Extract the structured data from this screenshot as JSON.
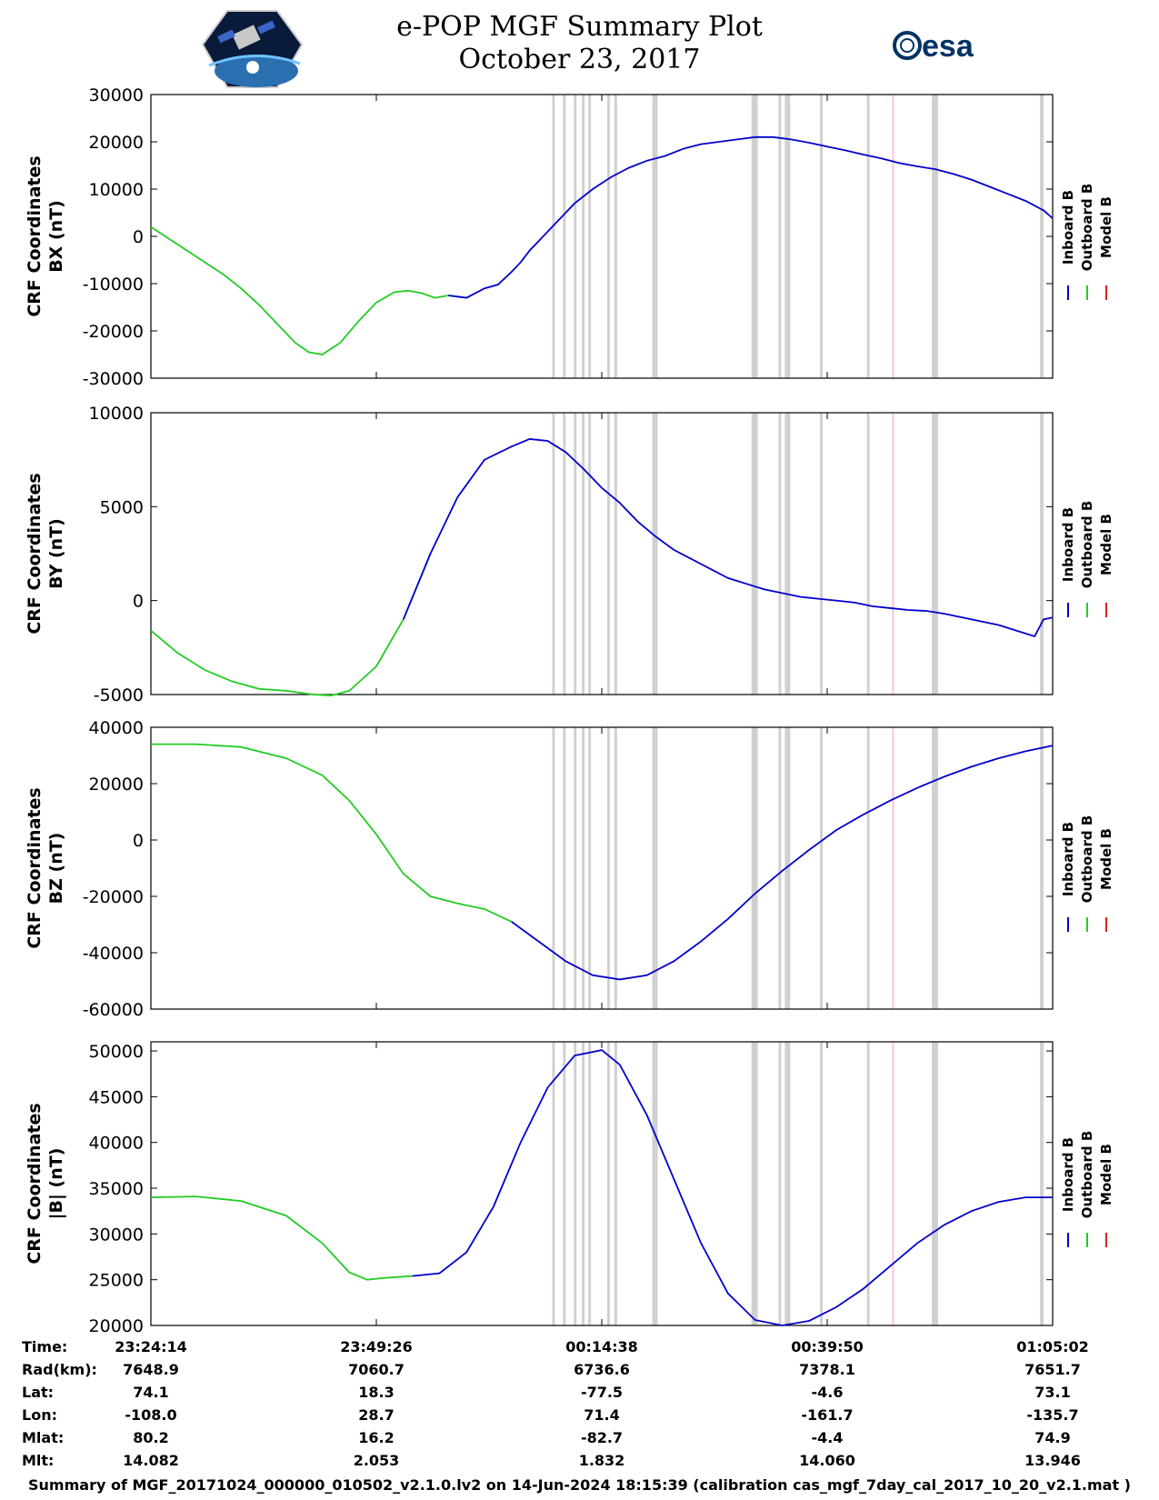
{
  "header": {
    "title": "e-POP MGF Summary Plot",
    "date": "October 23, 2017",
    "left_logo": "e-pop-cassiope-hexagon-logo",
    "right_logo": "esa",
    "right_logo_text": "esa"
  },
  "colors": {
    "inboard": "#0000cc",
    "outboard": "#22cc22",
    "model": "#dd2222",
    "band": "#d0d0d0",
    "band_pink": "#ffc0e0"
  },
  "legend": [
    "Inboard B",
    "Outboard B",
    "Model B"
  ],
  "chart_data": [
    {
      "type": "line",
      "ylabel_line1": "CRF Coordinates",
      "ylabel_line2": "BX (nT)",
      "ylim": [
        -30000,
        30000
      ],
      "yticks": [
        "30000",
        "20000",
        "10000",
        "0",
        "-10000",
        "-20000",
        "-30000"
      ],
      "x": [
        0,
        2,
        4,
        6,
        8,
        10,
        12,
        14,
        16,
        17.5,
        19,
        21,
        23,
        25,
        27,
        28.5,
        30,
        31.5,
        33,
        35,
        37,
        38.5,
        40,
        41,
        42,
        43,
        45,
        47,
        49,
        51,
        53,
        55,
        57,
        59,
        61,
        63,
        65,
        67,
        69,
        71,
        73,
        75,
        77,
        79,
        81,
        83,
        85,
        87,
        89,
        91,
        93,
        95,
        97,
        99,
        100
      ],
      "series": [
        {
          "name": "Outboard B",
          "color_key": "outboard",
          "start": 0,
          "end": 19
        },
        {
          "name": "Model B",
          "color_key": "model",
          "start": 18,
          "end": 22
        },
        {
          "name": "Inboard B",
          "color_key": "inboard",
          "start": 18,
          "end": 54
        }
      ],
      "y": [
        2000,
        -500,
        -3000,
        -5500,
        -8000,
        -11000,
        -14500,
        -18500,
        -22500,
        -24500,
        -25000,
        -22500,
        -18000,
        -14000,
        -11800,
        -11500,
        -12000,
        -13000,
        -12500,
        -13000,
        -11000,
        -10200,
        -7500,
        -5500,
        -3000,
        -1000,
        3000,
        7000,
        10000,
        12500,
        14500,
        16000,
        17000,
        18500,
        19500,
        20000,
        20500,
        21000,
        21000,
        20500,
        19800,
        19000,
        18200,
        17300,
        16500,
        15500,
        14800,
        14200,
        13200,
        12000,
        10500,
        9000,
        7500,
        5500,
        3800
      ]
    },
    {
      "type": "line",
      "ylabel_line1": "CRF Coordinates",
      "ylabel_line2": "BY (nT)",
      "ylim": [
        -5000,
        10000
      ],
      "yticks": [
        "10000",
        "5000",
        "0",
        "-5000"
      ],
      "x": [
        0,
        3,
        6,
        9,
        12,
        15,
        18,
        20,
        22,
        25,
        28,
        31,
        34,
        37,
        40,
        42,
        44,
        46,
        48,
        50,
        52,
        54,
        56,
        58,
        60,
        62,
        64,
        66,
        68,
        70,
        72,
        74,
        76,
        78,
        80,
        82,
        84,
        86,
        88,
        90,
        92,
        94,
        96,
        98,
        99,
        100
      ],
      "series": [
        {
          "name": "Outboard B",
          "color_key": "outboard",
          "start": 0,
          "end": 11
        },
        {
          "name": "Model B",
          "color_key": "model",
          "start": 15,
          "end": 17
        },
        {
          "name": "Inboard B",
          "color_key": "inboard",
          "start": 10,
          "end": 45
        }
      ],
      "y": [
        -1600,
        -2800,
        -3700,
        -4300,
        -4700,
        -4800,
        -5000,
        -5050,
        -4800,
        -3500,
        -1000,
        2500,
        5500,
        7500,
        8200,
        8600,
        8500,
        7900,
        7000,
        6000,
        5200,
        4200,
        3400,
        2700,
        2200,
        1700,
        1200,
        900,
        600,
        400,
        200,
        100,
        0,
        -100,
        -300,
        -400,
        -500,
        -550,
        -700,
        -900,
        -1100,
        -1300,
        -1600,
        -1900,
        -1000,
        -900
      ]
    },
    {
      "type": "line",
      "ylabel_line1": "CRF Coordinates",
      "ylabel_line2": "BZ (nT)",
      "ylim": [
        -60000,
        40000
      ],
      "yticks": [
        "40000",
        "20000",
        "0",
        "-20000",
        "-40000",
        "-60000"
      ],
      "x": [
        0,
        5,
        10,
        15,
        19,
        22,
        25,
        28,
        31,
        34,
        37,
        40,
        43,
        46,
        49,
        52,
        55,
        58,
        61,
        64,
        67,
        70,
        73,
        76,
        79,
        82,
        85,
        88,
        91,
        94,
        97,
        100
      ],
      "series": [
        {
          "name": "Outboard B",
          "color_key": "outboard",
          "start": 0,
          "end": 11
        },
        {
          "name": "Inboard B",
          "color_key": "inboard",
          "start": 11,
          "end": 31
        }
      ],
      "y": [
        34000,
        34000,
        33000,
        29000,
        23000,
        14000,
        2000,
        -12000,
        -20000,
        -22500,
        -24500,
        -29000,
        -36000,
        -43000,
        -48000,
        -49500,
        -48000,
        -43000,
        -36000,
        -28000,
        -19000,
        -11000,
        -3500,
        3500,
        9000,
        14000,
        18500,
        22500,
        26000,
        29000,
        31500,
        33500
      ]
    },
    {
      "type": "line",
      "ylabel_line1": "CRF Coordinates",
      "ylabel_line2": "|B| (nT)",
      "ylim": [
        20000,
        51000
      ],
      "yticks": [
        "50000",
        "45000",
        "40000",
        "35000",
        "30000",
        "25000",
        "20000"
      ],
      "x": [
        0,
        5,
        10,
        15,
        19,
        22,
        24,
        26,
        29,
        32,
        35,
        38,
        41,
        44,
        47,
        50,
        52,
        55,
        58,
        61,
        64,
        67,
        70,
        73,
        76,
        79,
        82,
        85,
        88,
        91,
        94,
        97,
        100
      ],
      "series": [
        {
          "name": "Outboard B",
          "color_key": "outboard",
          "start": 0,
          "end": 8
        },
        {
          "name": "Inboard B",
          "color_key": "inboard",
          "start": 8,
          "end": 32
        }
      ],
      "y": [
        34000,
        34100,
        33600,
        32000,
        29000,
        25800,
        25000,
        25200,
        25400,
        25700,
        28000,
        33000,
        40000,
        46000,
        49500,
        50100,
        48500,
        43000,
        36000,
        29000,
        23500,
        20600,
        20000,
        20500,
        22000,
        24000,
        26500,
        29000,
        31000,
        32500,
        33500,
        34000,
        34000
      ]
    }
  ],
  "bands": [
    {
      "x0": 44.5,
      "x1": 44.8,
      "pink": false
    },
    {
      "x0": 45.7,
      "x1": 46.0,
      "pink": false
    },
    {
      "x0": 46.9,
      "x1": 47.2,
      "pink": false
    },
    {
      "x0": 47.8,
      "x1": 48.1,
      "pink": false
    },
    {
      "x0": 48.5,
      "x1": 48.8,
      "pink": false
    },
    {
      "x0": 50.6,
      "x1": 50.9,
      "pink": false
    },
    {
      "x0": 51.4,
      "x1": 51.7,
      "pink": false
    },
    {
      "x0": 55.6,
      "x1": 56.2,
      "pink": false
    },
    {
      "x0": 66.6,
      "x1": 67.3,
      "pink": false
    },
    {
      "x0": 69.6,
      "x1": 69.9,
      "pink": false
    },
    {
      "x0": 70.3,
      "x1": 70.9,
      "pink": false
    },
    {
      "x0": 74.2,
      "x1": 74.5,
      "pink": false
    },
    {
      "x0": 79.4,
      "x1": 79.7,
      "pink": false
    },
    {
      "x0": 82.2,
      "x1": 82.4,
      "pink": true
    },
    {
      "x0": 86.6,
      "x1": 87.3,
      "pink": false
    },
    {
      "x0": 98.6,
      "x1": 99.0,
      "pink": false
    }
  ],
  "xaxis": {
    "tick_positions": [
      0,
      25,
      50,
      75,
      100
    ]
  },
  "info_table": {
    "rows": [
      {
        "label": "Time:",
        "values": [
          "23:24:14",
          "23:49:26",
          "00:14:38",
          "00:39:50",
          "01:05:02"
        ]
      },
      {
        "label": "Rad(km):",
        "values": [
          "7648.9",
          "7060.7",
          "6736.6",
          "7378.1",
          "7651.7"
        ]
      },
      {
        "label": "Lat:",
        "values": [
          "74.1",
          "18.3",
          "-77.5",
          "-4.6",
          "73.1"
        ]
      },
      {
        "label": "Lon:",
        "values": [
          "-108.0",
          "28.7",
          "71.4",
          "-161.7",
          "-135.7"
        ]
      },
      {
        "label": "Mlat:",
        "values": [
          "80.2",
          "16.2",
          "-82.7",
          "-4.4",
          "74.9"
        ]
      },
      {
        "label": "Mlt:",
        "values": [
          "14.082",
          "2.053",
          "1.832",
          "14.060",
          "13.946"
        ]
      }
    ]
  },
  "footer": "Summary of MGF_20171024_000000_010502_v2.1.0.lv2 on 14-Jun-2024 18:15:39 (calibration cas_mgf_7day_cal_2017_10_20_v2.1.mat )"
}
